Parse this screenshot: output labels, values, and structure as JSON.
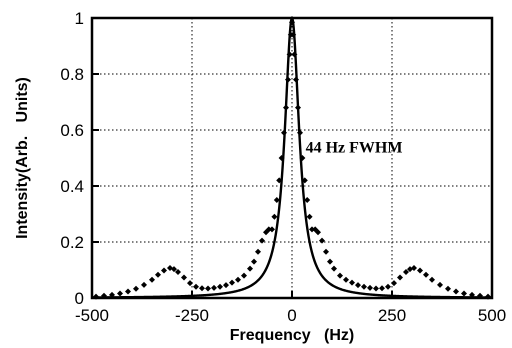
{
  "chart_data": {
    "type": "line",
    "title": "",
    "xlabel": "Frequency   (Hz)",
    "ylabel": "Intensity(Arb.   Units)",
    "xlim": [
      -500,
      500
    ],
    "ylim": [
      0,
      1
    ],
    "x_ticks": [
      "-500",
      "-250",
      "0",
      "250",
      "500"
    ],
    "y_ticks": [
      "0",
      "0.2",
      "0.4",
      "0.6",
      "0.8",
      "1"
    ],
    "grid": true,
    "annotations": [
      {
        "text": "44 Hz FWHM",
        "x": 155,
        "y": 0.52
      }
    ],
    "series": [
      {
        "style": "solid-line",
        "model": "lorentzian",
        "fwhm": 44,
        "x": [
          -500,
          -400,
          -300,
          -250,
          -200,
          -150,
          -120,
          -100,
          -80,
          -60,
          -50,
          -40,
          -30,
          -22,
          -15,
          -10,
          -5,
          0,
          5,
          10,
          15,
          22,
          30,
          40,
          50,
          60,
          80,
          100,
          120,
          150,
          200,
          250,
          300,
          400,
          500
        ],
        "y": [
          0.002,
          0.003,
          0.005,
          0.008,
          0.012,
          0.021,
          0.032,
          0.046,
          0.07,
          0.119,
          0.162,
          0.232,
          0.35,
          0.5,
          0.683,
          0.829,
          0.951,
          1.0,
          0.951,
          0.829,
          0.683,
          0.5,
          0.35,
          0.232,
          0.162,
          0.119,
          0.07,
          0.046,
          0.032,
          0.021,
          0.012,
          0.008,
          0.005,
          0.003,
          0.002
        ]
      },
      {
        "style": "diamond-markers",
        "x": [
          -490,
          -470,
          -450,
          -430,
          -410,
          -390,
          -370,
          -350,
          -335,
          -320,
          -305,
          -295,
          -285,
          -270,
          -255,
          -240,
          -225,
          -210,
          -195,
          -180,
          -165,
          -150,
          -135,
          -120,
          -105,
          -95,
          -85,
          -75,
          -65,
          -58,
          -50,
          -44,
          -38,
          -32,
          -26,
          -20,
          -15,
          -10,
          -6,
          -3,
          0,
          3,
          6,
          10,
          15,
          20,
          26,
          32,
          38,
          44,
          50,
          58,
          65,
          75,
          85,
          95,
          105,
          120,
          135,
          150,
          165,
          180,
          195,
          210,
          225,
          240,
          255,
          270,
          285,
          295,
          305,
          320,
          335,
          350,
          370,
          390,
          410,
          430,
          450,
          470,
          490
        ],
        "y": [
          0.005,
          0.008,
          0.011,
          0.016,
          0.023,
          0.033,
          0.047,
          0.065,
          0.083,
          0.098,
          0.107,
          0.103,
          0.093,
          0.073,
          0.053,
          0.04,
          0.035,
          0.034,
          0.036,
          0.04,
          0.046,
          0.055,
          0.065,
          0.08,
          0.105,
          0.13,
          0.165,
          0.205,
          0.235,
          0.245,
          0.245,
          0.29,
          0.35,
          0.42,
          0.5,
          0.59,
          0.68,
          0.78,
          0.87,
          0.94,
          0.985,
          0.94,
          0.87,
          0.78,
          0.68,
          0.59,
          0.5,
          0.42,
          0.35,
          0.29,
          0.245,
          0.245,
          0.235,
          0.205,
          0.165,
          0.13,
          0.105,
          0.08,
          0.065,
          0.055,
          0.046,
          0.04,
          0.036,
          0.034,
          0.035,
          0.04,
          0.053,
          0.073,
          0.093,
          0.103,
          0.107,
          0.098,
          0.083,
          0.065,
          0.047,
          0.033,
          0.023,
          0.016,
          0.011,
          0.008,
          0.005
        ]
      }
    ]
  }
}
